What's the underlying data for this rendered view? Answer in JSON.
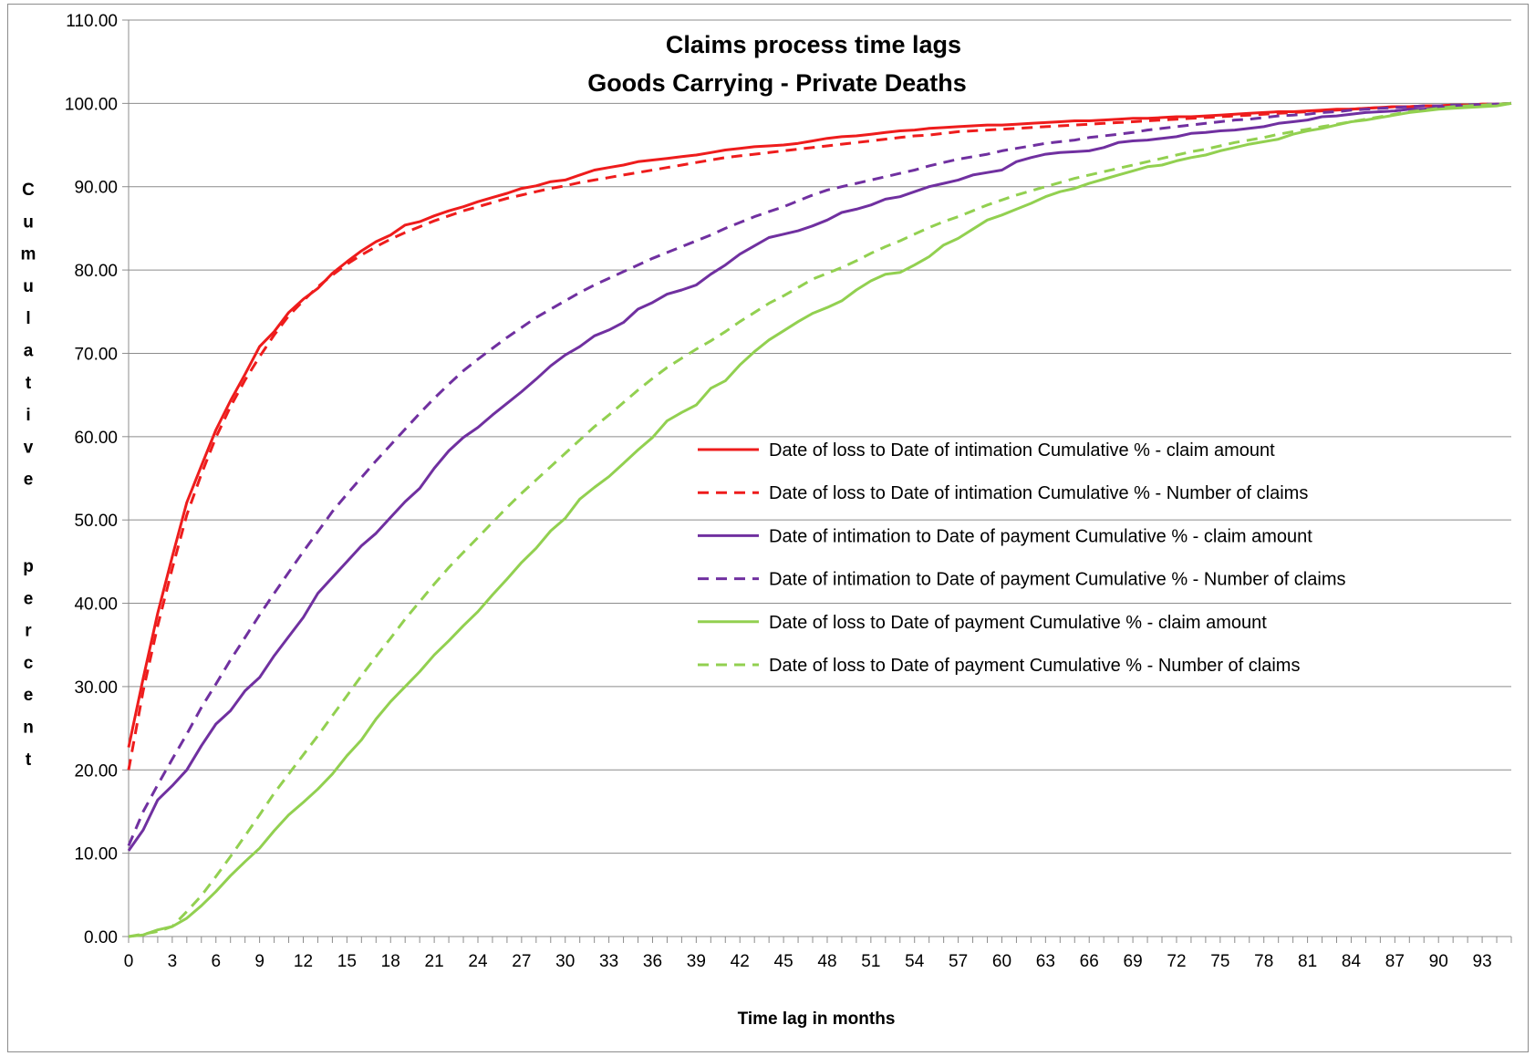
{
  "chart_data": {
    "type": "line",
    "title": "Claims process time lags",
    "subtitle": "Goods Carrying - Private Deaths",
    "xlabel": "Time lag in months",
    "ylabel": "Cumulative percent",
    "xlim": [
      0,
      95
    ],
    "ylim": [
      0,
      110
    ],
    "x_ticks": [
      "0",
      "3",
      "6",
      "9",
      "12",
      "15",
      "18",
      "21",
      "24",
      "27",
      "30",
      "33",
      "36",
      "39",
      "42",
      "45",
      "48",
      "51",
      "54",
      "57",
      "60",
      "63",
      "66",
      "69",
      "72",
      "75",
      "78",
      "81",
      "84",
      "87",
      "90",
      "93"
    ],
    "y_ticks": [
      "0.00",
      "10.00",
      "20.00",
      "30.00",
      "40.00",
      "50.00",
      "60.00",
      "70.00",
      "80.00",
      "90.00",
      "100.00",
      "110.00"
    ],
    "grid": "horizontal",
    "legend_position": "center-right",
    "x": [
      0,
      1,
      2,
      3,
      4,
      5,
      6,
      7,
      8,
      9,
      10,
      11,
      12,
      13,
      14,
      15,
      16,
      17,
      18,
      19,
      20,
      21,
      22,
      23,
      24,
      25,
      26,
      27,
      28,
      29,
      30,
      31,
      32,
      33,
      34,
      35,
      36,
      37,
      38,
      39,
      40,
      41,
      42,
      43,
      44,
      45,
      46,
      47,
      48,
      49,
      50,
      51,
      52,
      53,
      54,
      55,
      56,
      57,
      58,
      59,
      60,
      61,
      62,
      63,
      64,
      65,
      66,
      67,
      68,
      69,
      70,
      71,
      72,
      73,
      74,
      75,
      76,
      77,
      78,
      79,
      80,
      81,
      82,
      83,
      84,
      85,
      86,
      87,
      88,
      89,
      90,
      91,
      92,
      93,
      94,
      95
    ],
    "series": [
      {
        "name": "Date of loss to Date of intimation Cumulative % - claim amount",
        "color": "#ee1c1c",
        "dash": "solid",
        "values": [
          22.7,
          31.0,
          38.8,
          45.6,
          52.1,
          56.5,
          60.8,
          64.3,
          67.5,
          70.8,
          72.6,
          74.9,
          76.5,
          77.8,
          79.6,
          81.0,
          82.3,
          83.4,
          84.2,
          85.4,
          85.8,
          86.5,
          87.1,
          87.6,
          88.2,
          88.7,
          89.2,
          89.8,
          90.1,
          90.6,
          90.8,
          91.4,
          92.0,
          92.3,
          92.6,
          93.0,
          93.2,
          93.4,
          93.6,
          93.8,
          94.1,
          94.4,
          94.6,
          94.8,
          94.9,
          95.0,
          95.2,
          95.5,
          95.8,
          96.0,
          96.1,
          96.3,
          96.5,
          96.7,
          96.8,
          97.0,
          97.1,
          97.2,
          97.3,
          97.4,
          97.4,
          97.5,
          97.6,
          97.7,
          97.8,
          97.9,
          97.9,
          98.0,
          98.1,
          98.2,
          98.2,
          98.3,
          98.4,
          98.4,
          98.5,
          98.6,
          98.7,
          98.8,
          98.9,
          99.0,
          99.0,
          99.1,
          99.2,
          99.3,
          99.3,
          99.4,
          99.5,
          99.6,
          99.6,
          99.7,
          99.7,
          99.8,
          99.8,
          99.9,
          99.9,
          100.0
        ]
      },
      {
        "name": "Date of loss to Date of intimation Cumulative % - Number of claims",
        "color": "#ee1c1c",
        "dash": "dash",
        "values": [
          20.0,
          29.5,
          37.3,
          44.2,
          50.6,
          55.5,
          59.9,
          63.6,
          66.8,
          69.6,
          72.2,
          74.5,
          76.3,
          78.0,
          79.4,
          80.7,
          81.8,
          82.8,
          83.7,
          84.5,
          85.2,
          85.9,
          86.5,
          87.1,
          87.6,
          88.1,
          88.6,
          89.0,
          89.4,
          89.8,
          90.1,
          90.5,
          90.8,
          91.1,
          91.4,
          91.7,
          92.0,
          92.3,
          92.6,
          92.9,
          93.2,
          93.5,
          93.7,
          93.9,
          94.1,
          94.3,
          94.5,
          94.7,
          94.9,
          95.1,
          95.3,
          95.5,
          95.7,
          95.9,
          96.1,
          96.2,
          96.4,
          96.6,
          96.7,
          96.8,
          96.9,
          97.0,
          97.1,
          97.2,
          97.3,
          97.4,
          97.5,
          97.6,
          97.7,
          97.8,
          97.9,
          98.0,
          98.1,
          98.2,
          98.3,
          98.4,
          98.5,
          98.6,
          98.7,
          98.8,
          98.9,
          99.0,
          99.1,
          99.2,
          99.3,
          99.4,
          99.5,
          99.6,
          99.6,
          99.7,
          99.7,
          99.8,
          99.8,
          99.9,
          99.9,
          100.0
        ]
      },
      {
        "name": "Date of intimation to Date of payment Cumulative % - claim amount",
        "color": "#7030a0",
        "dash": "solid",
        "values": [
          10.3,
          12.8,
          16.4,
          18.1,
          20.0,
          22.9,
          25.5,
          27.1,
          29.5,
          31.1,
          33.7,
          36.0,
          38.3,
          41.2,
          43.1,
          45.0,
          46.9,
          48.4,
          50.3,
          52.2,
          53.8,
          56.2,
          58.3,
          59.9,
          61.1,
          62.6,
          64.0,
          65.4,
          66.9,
          68.5,
          69.8,
          70.8,
          72.1,
          72.8,
          73.7,
          75.3,
          76.1,
          77.1,
          77.6,
          78.2,
          79.5,
          80.6,
          81.9,
          82.9,
          83.9,
          84.3,
          84.7,
          85.3,
          86.0,
          86.9,
          87.3,
          87.8,
          88.5,
          88.8,
          89.4,
          90.0,
          90.4,
          90.8,
          91.4,
          91.7,
          92.0,
          93.0,
          93.5,
          93.9,
          94.1,
          94.2,
          94.3,
          94.7,
          95.3,
          95.5,
          95.6,
          95.8,
          96.0,
          96.4,
          96.5,
          96.7,
          96.8,
          97.0,
          97.2,
          97.6,
          97.8,
          98.0,
          98.4,
          98.5,
          98.7,
          98.9,
          99.0,
          99.1,
          99.3,
          99.3,
          99.5,
          99.6,
          99.7,
          99.8,
          99.9,
          100.0
        ]
      },
      {
        "name": "Date of intimation to Date of payment Cumulative % - Number of claims",
        "color": "#7030a0",
        "dash": "dash",
        "values": [
          10.9,
          15.0,
          18.2,
          21.3,
          24.3,
          27.5,
          30.3,
          33.2,
          35.9,
          38.6,
          41.2,
          43.7,
          46.2,
          48.6,
          51.0,
          53.1,
          55.1,
          57.1,
          59.0,
          60.9,
          62.8,
          64.6,
          66.3,
          67.9,
          69.3,
          70.6,
          71.9,
          73.1,
          74.3,
          75.3,
          76.3,
          77.3,
          78.2,
          79.0,
          79.8,
          80.6,
          81.4,
          82.1,
          82.8,
          83.5,
          84.2,
          85.0,
          85.7,
          86.4,
          87.0,
          87.6,
          88.3,
          89.0,
          89.6,
          90.0,
          90.4,
          90.8,
          91.2,
          91.6,
          92.0,
          92.5,
          92.9,
          93.3,
          93.6,
          93.9,
          94.3,
          94.6,
          94.9,
          95.2,
          95.4,
          95.6,
          95.9,
          96.1,
          96.3,
          96.5,
          96.8,
          97.0,
          97.2,
          97.4,
          97.6,
          97.8,
          98.0,
          98.1,
          98.3,
          98.5,
          98.6,
          98.7,
          98.9,
          99.0,
          99.2,
          99.3,
          99.4,
          99.5,
          99.6,
          99.7,
          99.7,
          99.8,
          99.8,
          99.9,
          99.9,
          100.0
        ]
      },
      {
        "name": "Date of loss to Date of payment Cumulative % - claim amount",
        "color": "#92d050",
        "dash": "solid",
        "values": [
          0.0,
          0.2,
          0.8,
          1.2,
          2.2,
          3.7,
          5.4,
          7.3,
          9.0,
          10.6,
          12.7,
          14.6,
          16.1,
          17.7,
          19.5,
          21.7,
          23.6,
          26.1,
          28.2,
          30.0,
          31.8,
          33.8,
          35.5,
          37.3,
          39.0,
          41.0,
          42.9,
          44.9,
          46.6,
          48.7,
          50.2,
          52.5,
          53.9,
          55.2,
          56.8,
          58.4,
          59.9,
          61.9,
          62.9,
          63.8,
          65.8,
          66.7,
          68.6,
          70.2,
          71.6,
          72.7,
          73.8,
          74.8,
          75.5,
          76.3,
          77.6,
          78.7,
          79.5,
          79.7,
          80.6,
          81.6,
          83.0,
          83.8,
          84.9,
          86.0,
          86.6,
          87.3,
          88.0,
          88.8,
          89.4,
          89.8,
          90.4,
          90.9,
          91.4,
          91.9,
          92.4,
          92.6,
          93.1,
          93.5,
          93.8,
          94.3,
          94.7,
          95.1,
          95.4,
          95.7,
          96.3,
          96.7,
          97.0,
          97.4,
          97.8,
          98.0,
          98.3,
          98.6,
          98.9,
          99.1,
          99.3,
          99.4,
          99.5,
          99.6,
          99.7,
          100.0
        ]
      },
      {
        "name": "Date of loss to Date of payment Cumulative % - Number of claims",
        "color": "#92d050",
        "dash": "dash",
        "values": [
          0.0,
          0.3,
          0.6,
          1.2,
          3.0,
          4.9,
          7.2,
          9.6,
          12.1,
          14.6,
          17.2,
          19.5,
          21.8,
          24.1,
          26.5,
          28.9,
          31.3,
          33.6,
          35.8,
          38.1,
          40.2,
          42.3,
          44.3,
          46.1,
          47.9,
          49.7,
          51.5,
          53.2,
          54.8,
          56.4,
          58.0,
          59.6,
          61.2,
          62.6,
          64.1,
          65.6,
          67.0,
          68.3,
          69.4,
          70.5,
          71.5,
          72.6,
          73.8,
          74.9,
          76.0,
          76.9,
          77.9,
          78.9,
          79.6,
          80.3,
          81.1,
          82.0,
          82.8,
          83.5,
          84.3,
          85.1,
          85.8,
          86.4,
          87.1,
          87.8,
          88.4,
          89.0,
          89.5,
          90.0,
          90.5,
          91.0,
          91.4,
          91.8,
          92.2,
          92.6,
          93.0,
          93.4,
          93.8,
          94.2,
          94.5,
          94.9,
          95.3,
          95.6,
          95.9,
          96.3,
          96.6,
          96.9,
          97.2,
          97.5,
          97.8,
          98.1,
          98.4,
          98.7,
          99.0,
          99.2,
          99.4,
          99.6,
          99.7,
          99.8,
          99.9,
          100.0
        ]
      }
    ]
  }
}
